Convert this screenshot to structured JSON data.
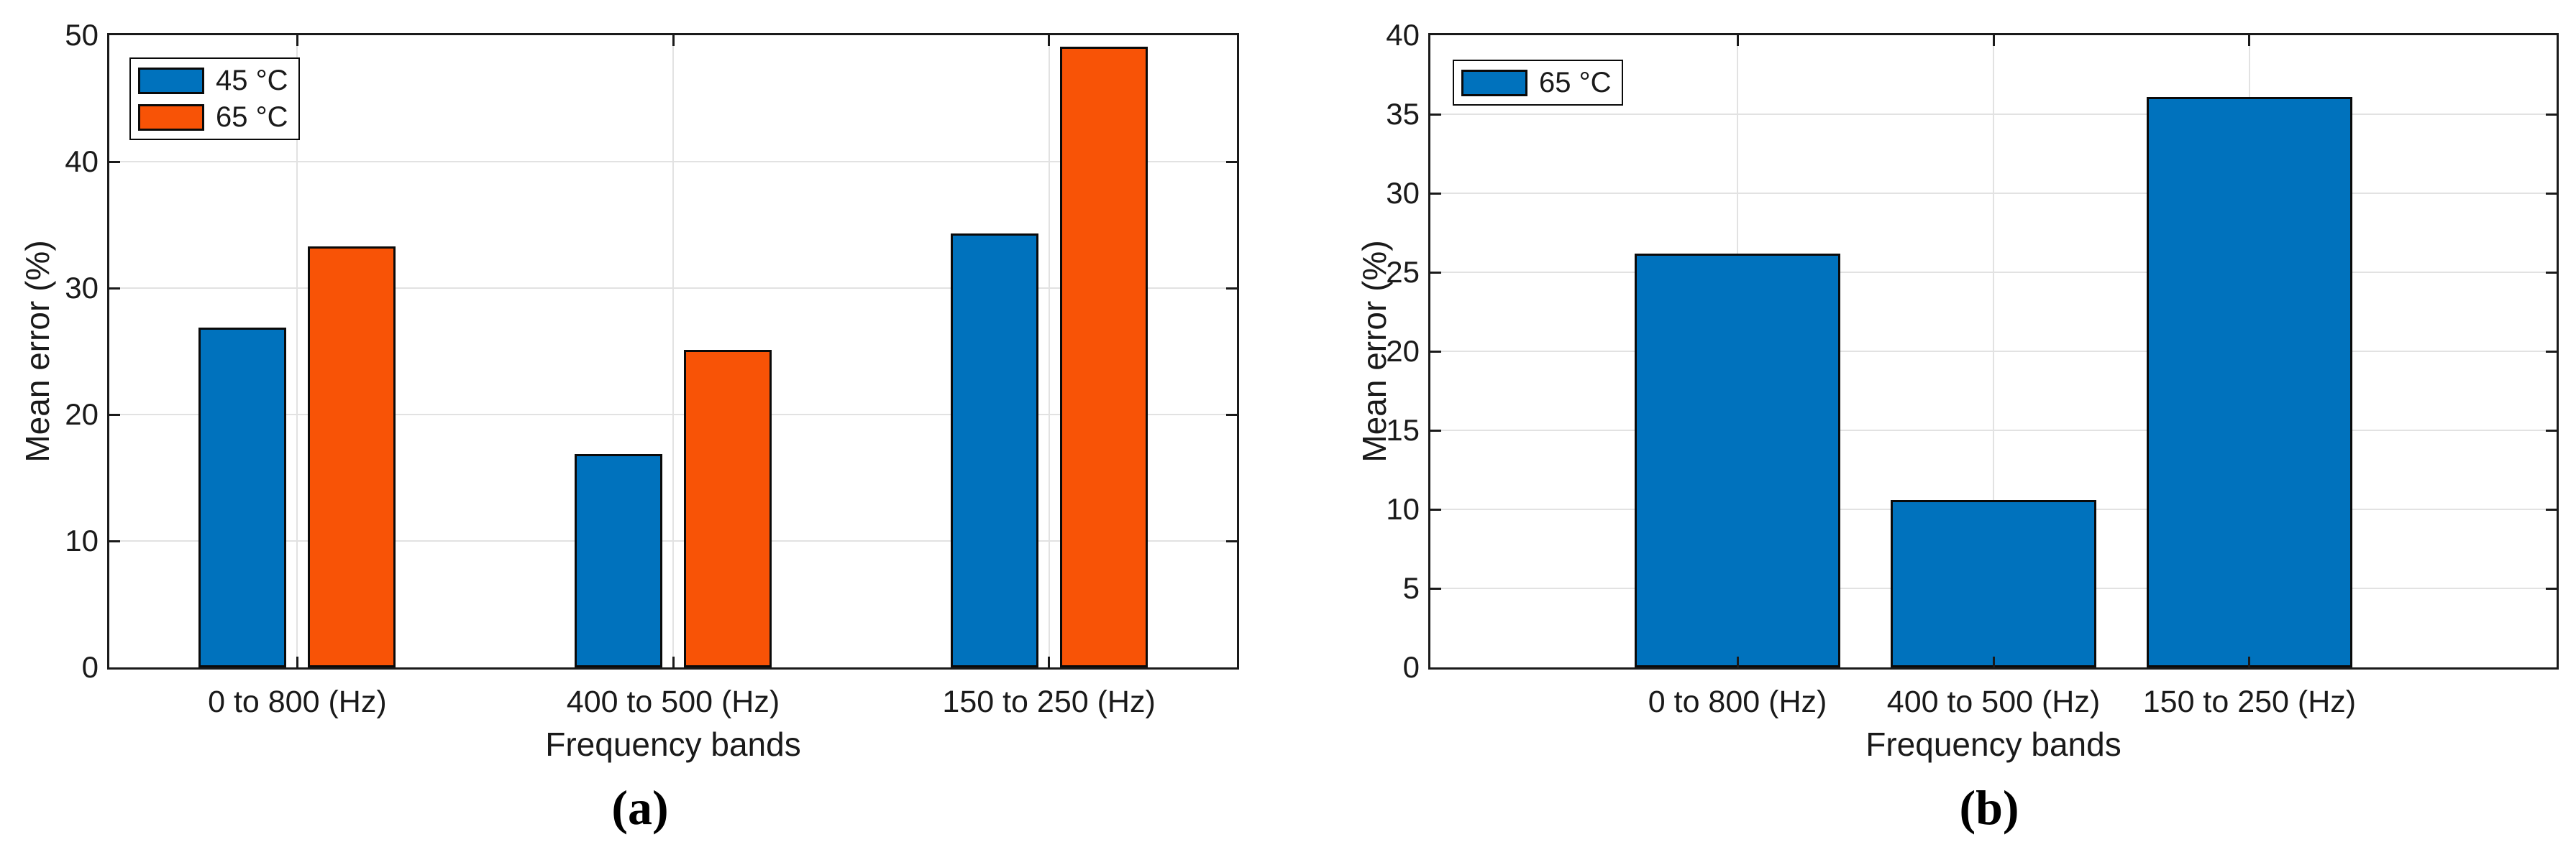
{
  "colors": {
    "series_blue": "#0072BD",
    "series_orange": "#F85306",
    "grid": "#E2E2E2",
    "axis": "#1A1A1A",
    "bar_edge": "#0A0A0A",
    "background": "#FFFFFF"
  },
  "chart_data": [
    {
      "id": "a",
      "type": "bar",
      "title": "",
      "caption": "(a)",
      "xlabel": "Frequency bands",
      "ylabel": "Mean error (%)",
      "categories": [
        "0 to 800 (Hz)",
        "400 to 500 (Hz)",
        "150 to 250 (Hz)"
      ],
      "series": [
        {
          "name": "45 °C",
          "color": "#0072BD",
          "values": [
            26.9,
            16.9,
            34.3
          ]
        },
        {
          "name": "65 °C",
          "color": "#F85306",
          "values": [
            33.3,
            25.1,
            49.1
          ]
        }
      ],
      "ylim": [
        0,
        50
      ],
      "yticks": [
        0,
        10,
        20,
        30,
        40,
        50
      ],
      "grid": true,
      "legend_position": "top-left"
    },
    {
      "id": "b",
      "type": "bar",
      "title": "",
      "caption": "(b)",
      "xlabel": "Frequency bands",
      "ylabel": "Mean error (%)",
      "categories": [
        "0 to 800 (Hz)",
        "400 to 500 (Hz)",
        "150 to 250 (Hz)"
      ],
      "series": [
        {
          "name": "65 °C",
          "color": "#0072BD",
          "values": [
            26.2,
            10.6,
            36.1
          ]
        }
      ],
      "ylim": [
        0,
        40
      ],
      "yticks": [
        0,
        5,
        10,
        15,
        20,
        25,
        30,
        35,
        40
      ],
      "grid": true,
      "legend_position": "top-left"
    }
  ]
}
